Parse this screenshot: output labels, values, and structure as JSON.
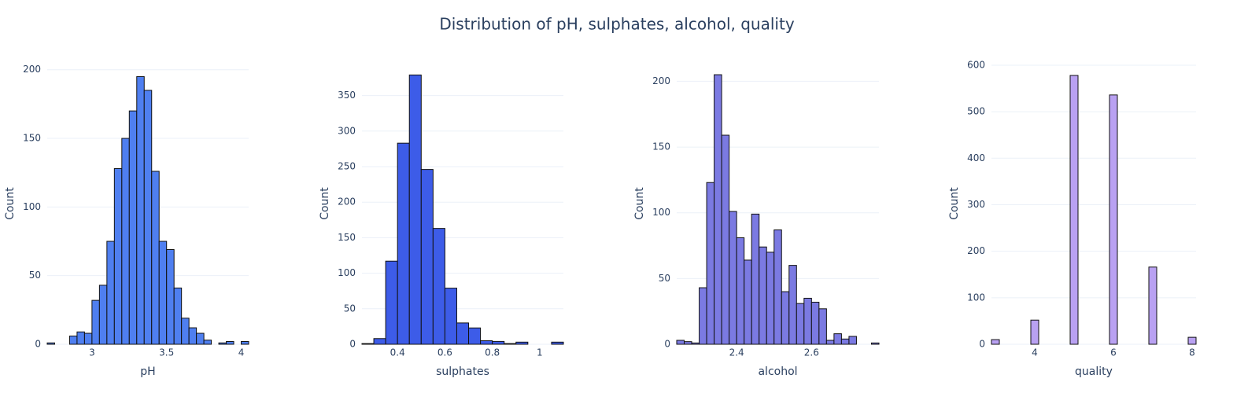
{
  "title": "Distribution of pH, sulphates, alcohol, quality",
  "chart_data": [
    {
      "type": "histogram",
      "x_label": "pH",
      "y_label": "Count",
      "color": "#4f7ff0",
      "bins": [
        2.7,
        2.75,
        2.8,
        2.85,
        2.9,
        2.95,
        3,
        3.05,
        3.1,
        3.15,
        3.2,
        3.25,
        3.3,
        3.35,
        3.4,
        3.45,
        3.5,
        3.55,
        3.6,
        3.65,
        3.7,
        3.75,
        3.8,
        3.85,
        3.9,
        3.95,
        4,
        4.05
      ],
      "values": [
        1,
        0,
        0,
        6,
        9,
        8,
        32,
        43,
        75,
        128,
        150,
        170,
        195,
        185,
        126,
        75,
        69,
        41,
        19,
        12,
        8,
        3,
        0,
        1,
        2,
        0,
        2
      ],
      "xlim": [
        2.7,
        4.05
      ],
      "xticks": [
        3,
        3.5,
        4
      ],
      "ylim": [
        0,
        205
      ],
      "yticks": [
        0,
        50,
        100,
        150,
        200
      ],
      "grid": true
    },
    {
      "type": "histogram",
      "x_label": "sulphates",
      "y_label": "Count",
      "color": "#3d5ce8",
      "bins": [
        0.25,
        0.3,
        0.35,
        0.4,
        0.45,
        0.5,
        0.55,
        0.6,
        0.65,
        0.7,
        0.75,
        0.8,
        0.85,
        0.9,
        0.95,
        1,
        1.05,
        1.1
      ],
      "values": [
        1,
        8,
        117,
        283,
        379,
        246,
        163,
        79,
        30,
        23,
        5,
        4,
        1,
        3,
        0,
        0,
        3
      ],
      "xlim": [
        0.25,
        1.1
      ],
      "xticks": [
        0.4,
        0.6,
        0.8,
        1
      ],
      "ylim": [
        0,
        396
      ],
      "yticks": [
        0,
        50,
        100,
        150,
        200,
        250,
        300,
        350
      ],
      "grid": true
    },
    {
      "type": "histogram",
      "x_label": "alcohol",
      "y_label": "Count",
      "color": "#7b7ae2",
      "bins": [
        2.24,
        2.26,
        2.28,
        2.3,
        2.32,
        2.34,
        2.36,
        2.38,
        2.4,
        2.42,
        2.44,
        2.46,
        2.48,
        2.5,
        2.52,
        2.54,
        2.56,
        2.58,
        2.6,
        2.62,
        2.64,
        2.66,
        2.68,
        2.7,
        2.72,
        2.74,
        2.76,
        2.78
      ],
      "values": [
        3,
        2,
        1,
        43,
        123,
        205,
        159,
        101,
        81,
        64,
        99,
        74,
        70,
        87,
        40,
        60,
        31,
        35,
        32,
        27,
        3,
        8,
        4,
        6,
        0,
        0,
        1
      ],
      "xlim": [
        2.24,
        2.78
      ],
      "xticks": [
        2.4,
        2.6
      ],
      "ylim": [
        0,
        214
      ],
      "yticks": [
        0,
        50,
        100,
        150,
        200
      ],
      "grid": true
    },
    {
      "type": "histogram",
      "x_label": "quality",
      "y_label": "Count",
      "color": "#b9a1f2",
      "bins": [
        2.9,
        3.1,
        3.3,
        3.5,
        3.7,
        3.9,
        4.1,
        4.3,
        4.5,
        4.7,
        4.9,
        5.1,
        5.3,
        5.5,
        5.7,
        5.9,
        6.1,
        6.3,
        6.5,
        6.7,
        6.9,
        7.1,
        7.3,
        7.5,
        7.7,
        7.9,
        8.1
      ],
      "values": [
        10,
        0,
        0,
        0,
        0,
        52,
        0,
        0,
        0,
        0,
        578,
        0,
        0,
        0,
        0,
        536,
        0,
        0,
        0,
        0,
        166,
        0,
        0,
        0,
        0,
        15
      ],
      "xlim": [
        2.9,
        8.1
      ],
      "xticks": [
        4,
        6,
        8
      ],
      "ylim": [
        0,
        605
      ],
      "yticks": [
        0,
        100,
        200,
        300,
        400,
        500,
        600
      ],
      "grid": true
    }
  ]
}
